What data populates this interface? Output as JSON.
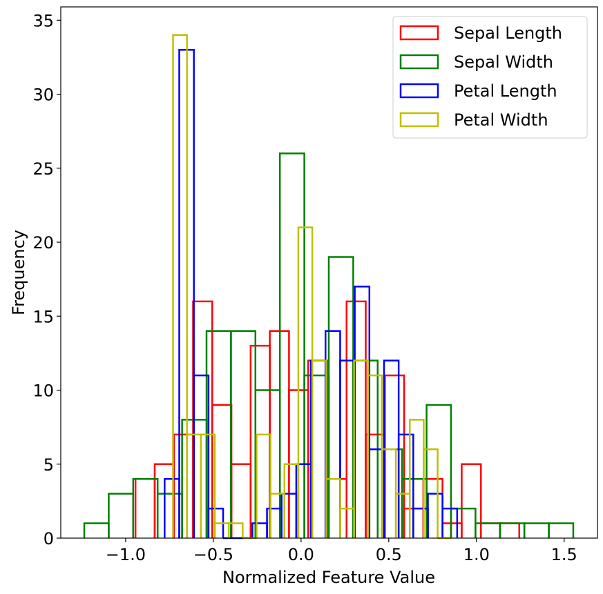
{
  "chart_data": {
    "type": "histogram",
    "xlabel": "Normalized Feature Value",
    "ylabel": "Frequency",
    "xlim": [
      -1.37,
      1.69
    ],
    "ylim": [
      0,
      35.9
    ],
    "xticks": [
      -1.0,
      -0.5,
      0.0,
      0.5,
      1.0,
      1.5
    ],
    "xtick_labels": [
      "−1.0",
      "−0.5",
      "0.0",
      "0.5",
      "1.0",
      "1.5"
    ],
    "yticks": [
      0,
      5,
      10,
      15,
      20,
      25,
      30,
      35
    ],
    "ytick_labels": [
      "0",
      "5",
      "10",
      "15",
      "20",
      "25",
      "30",
      "35"
    ],
    "grid": false,
    "legend_position": "top-right",
    "series": [
      {
        "name": "Sepal Length",
        "color": "#ff0000",
        "bin_start": -0.944,
        "bin_width": 0.1094,
        "counts": [
          4,
          5,
          7,
          16,
          9,
          5,
          13,
          14,
          10,
          12,
          4,
          16,
          7,
          11,
          2,
          4,
          1,
          5,
          1,
          1
        ]
      },
      {
        "name": "Sepal Width",
        "color": "#008000",
        "bin_start": -1.236,
        "bin_width": 0.1394,
        "counts": [
          1,
          3,
          4,
          3,
          8,
          14,
          14,
          10,
          26,
          11,
          19,
          12,
          6,
          4,
          9,
          2,
          1,
          1,
          1,
          1
        ]
      },
      {
        "name": "Petal Length",
        "color": "#0000ff",
        "bin_start": -0.778,
        "bin_width": 0.0834,
        "counts": [
          4,
          33,
          11,
          2,
          0,
          0,
          1,
          2,
          3,
          5,
          12,
          14,
          12,
          17,
          6,
          12,
          7,
          2,
          3,
          2
        ]
      },
      {
        "name": "Petal Width",
        "color": "#bfbf00",
        "bin_start": -0.73,
        "bin_width": 0.0794,
        "counts": [
          34,
          7,
          7,
          1,
          1,
          0,
          7,
          3,
          5,
          21,
          12,
          4,
          2,
          12,
          11,
          6,
          3,
          8,
          6,
          0
        ]
      }
    ]
  }
}
